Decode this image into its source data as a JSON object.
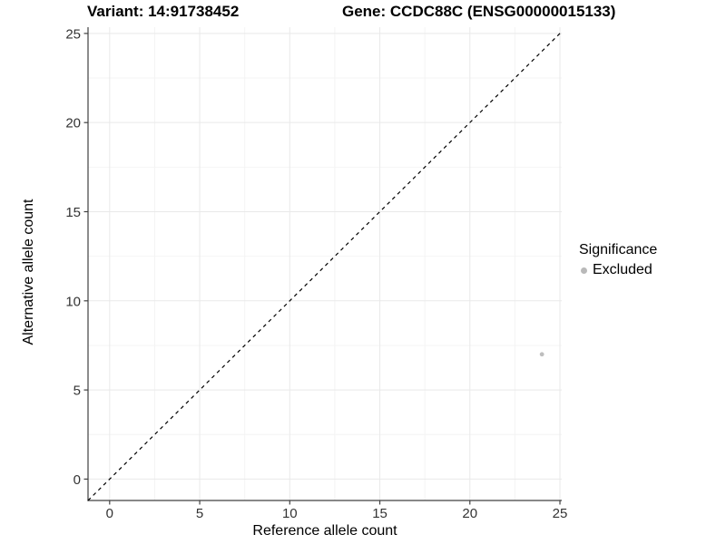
{
  "titles": {
    "left": "Variant: 14:91738452",
    "right": "Gene: CCDC88C (ENSG00000015133)"
  },
  "chart_data": {
    "type": "scatter",
    "xlabel": "Reference allele count",
    "ylabel": "Alternative allele count",
    "xlim": [
      -1.2,
      25.1
    ],
    "ylim": [
      -1.2,
      25.35
    ],
    "xticks": [
      0,
      5,
      10,
      15,
      20,
      25
    ],
    "yticks": [
      0,
      5,
      10,
      15,
      20,
      25
    ],
    "grid": "major+minor",
    "reference_line": {
      "type": "identity",
      "equation": "y = x",
      "style": "dashed",
      "color": "#000000"
    },
    "series": [
      {
        "name": "Excluded",
        "color": "#bebebe",
        "points": [
          {
            "x": 24,
            "y": 7
          }
        ]
      }
    ],
    "legend": {
      "title": "Significance",
      "position": "right",
      "items": [
        {
          "label": "Excluded",
          "color": "#b9b9b9"
        }
      ]
    }
  },
  "colors": {
    "background": "#ffffff",
    "grid_major": "#e9e9e9",
    "grid_minor": "#f4f4f4",
    "axis": "#404040",
    "tick_label": "#333333"
  }
}
